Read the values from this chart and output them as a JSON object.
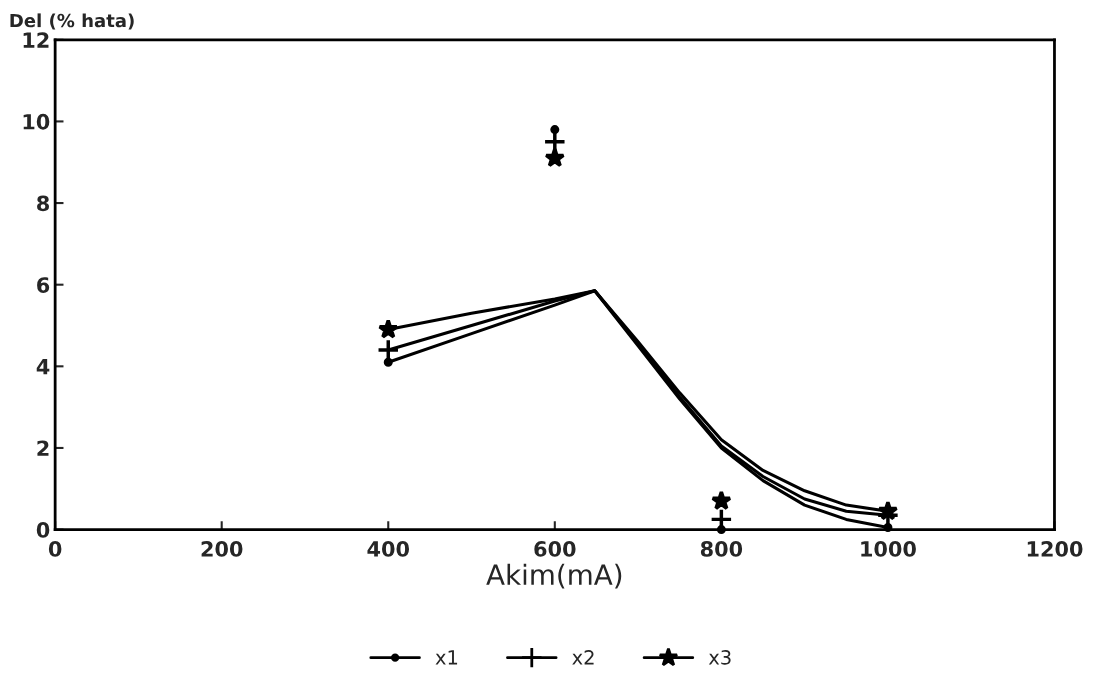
{
  "chart_data": {
    "type": "line",
    "xlabel": "Akim(mA)",
    "ylabel": "Del (% hata)",
    "xlim": [
      0,
      1200
    ],
    "xticks": [
      0,
      200,
      400,
      600,
      800,
      1000,
      1200
    ],
    "ylim": [
      0,
      12
    ],
    "yticks": [
      0,
      2,
      4,
      6,
      8,
      10,
      12
    ],
    "grid": false,
    "legend": "bottom",
    "series": [
      {
        "color": "#000000",
        "x": [
          400,
          500,
          600,
          648,
          700,
          750,
          800,
          850,
          900,
          950,
          1000
        ],
        "values": [
          4.1,
          4.8,
          5.5,
          5.85,
          4.5,
          3.2,
          2.0,
          1.2,
          0.6,
          0.25,
          0.05
        ]
      },
      {
        "color": "#000000",
        "x": [
          400,
          500,
          600,
          648,
          700,
          750,
          800,
          850,
          900,
          950,
          1000
        ],
        "values": [
          4.4,
          5.0,
          5.6,
          5.85,
          4.55,
          3.25,
          2.05,
          1.3,
          0.75,
          0.45,
          0.35
        ]
      },
      {
        "color": "#000000",
        "x": [
          400,
          500,
          600,
          648,
          700,
          750,
          800,
          850,
          900,
          950,
          1000
        ],
        "values": [
          4.9,
          5.3,
          5.65,
          5.85,
          4.6,
          3.35,
          2.2,
          1.45,
          0.95,
          0.6,
          0.45
        ]
      },
      {
        "type": "scatter",
        "name": "x1",
        "color": "#000000",
        "marker": "circle",
        "x": [
          400,
          600,
          800,
          1000
        ],
        "values": [
          4.1,
          9.8,
          0.0,
          0.05
        ]
      },
      {
        "type": "scatter",
        "name": "x2",
        "color": "#000000",
        "marker": "cross",
        "x": [
          400,
          600,
          800,
          1000
        ],
        "values": [
          4.4,
          9.5,
          0.25,
          0.35
        ]
      },
      {
        "type": "scatter",
        "name": "x3",
        "color": "#000000",
        "marker": "star",
        "x": [
          400,
          600,
          800,
          1000
        ],
        "values": [
          4.9,
          9.1,
          0.7,
          0.45
        ]
      }
    ]
  }
}
